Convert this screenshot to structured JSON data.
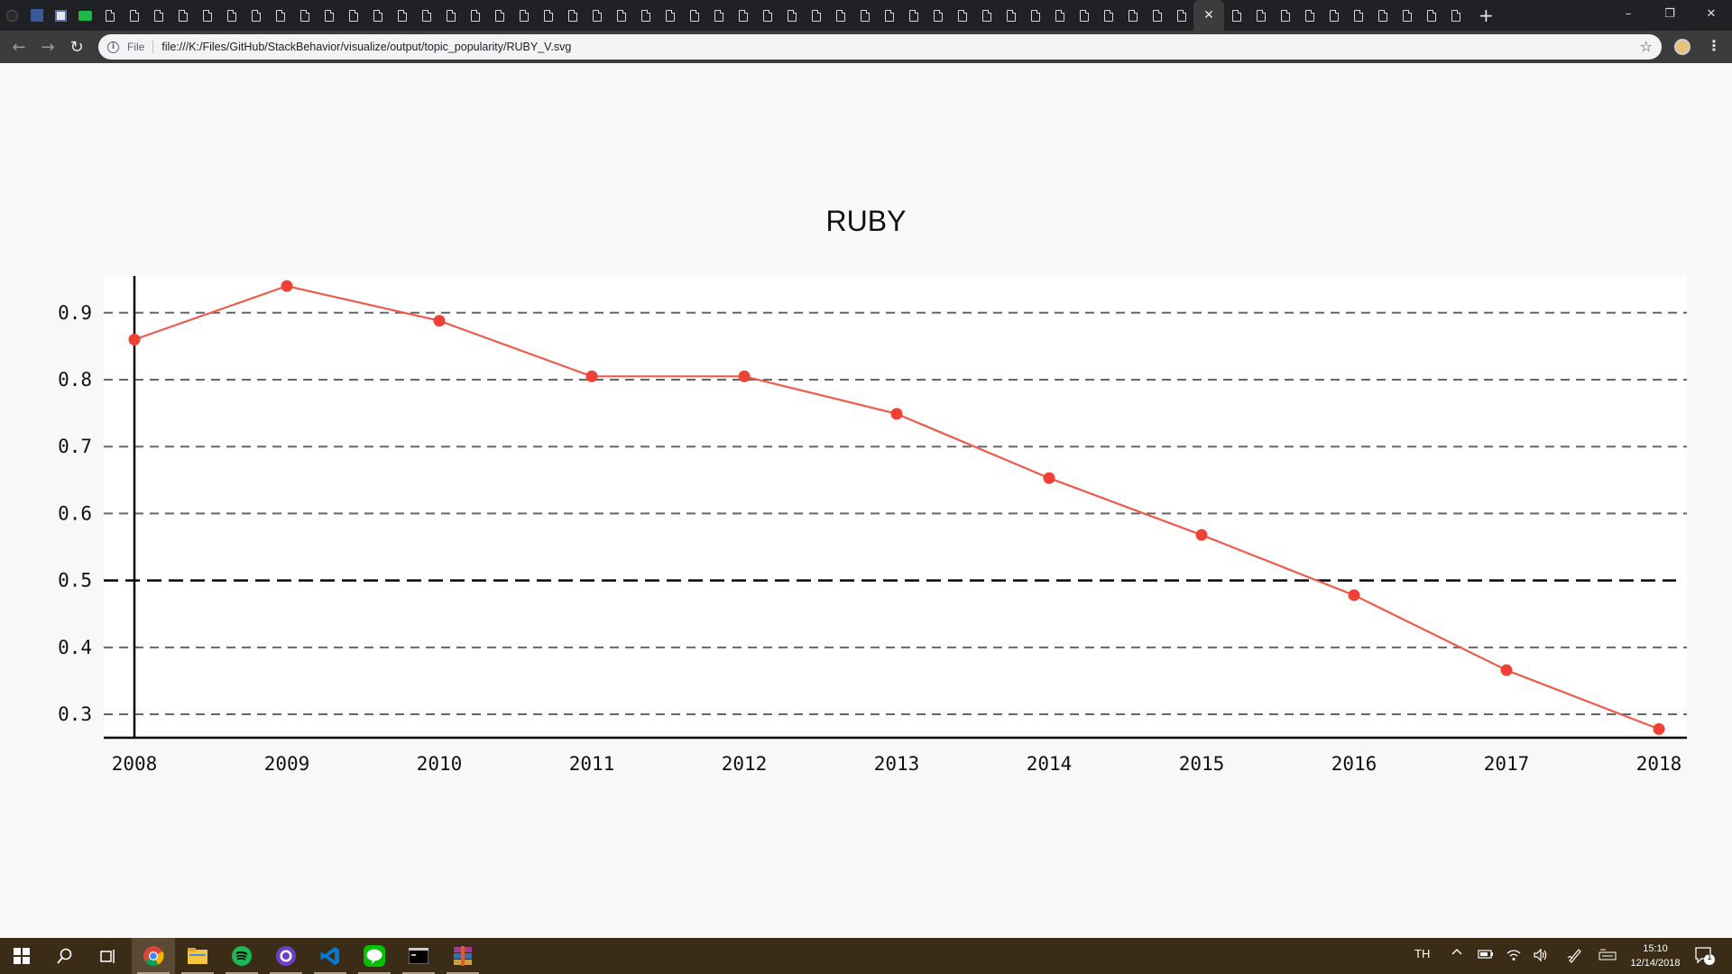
{
  "browser": {
    "tab_count": 60,
    "active_tab_index": 49,
    "close_glyph": "✕",
    "new_tab_glyph": "+",
    "window_controls": {
      "minimize": "–",
      "maximize": "❐",
      "close": "✕"
    },
    "nav": {
      "back": "←",
      "forward": "→",
      "reload": "↻"
    },
    "address": {
      "scheme_label": "File",
      "url": "file:///K:/Files/GitHub/StackBehavior/visualize/output/topic_popularity/RUBY_V.svg",
      "info_glyph": "i",
      "bookmark_glyph": "☆"
    },
    "menu_glyph": "⋮"
  },
  "chart_data": {
    "type": "line",
    "title": "RUBY",
    "xlabel": "",
    "ylabel": "",
    "x": [
      "2008",
      "2009",
      "2010",
      "2011",
      "2012",
      "2013",
      "2014",
      "2015",
      "2016",
      "2017",
      "2018"
    ],
    "series": [
      {
        "values": [
          0.86,
          0.94,
          0.888,
          0.805,
          0.805,
          0.749,
          0.653,
          0.568,
          0.478,
          0.366,
          0.278
        ]
      }
    ],
    "yticks": [
      0.9,
      0.8,
      0.7,
      0.6,
      0.5,
      0.4,
      0.3
    ],
    "ytick_labels": [
      "0.9",
      "0.8",
      "0.7",
      "0.6",
      "0.5",
      "0.4",
      "0.3"
    ],
    "ylim": [
      0.265,
      0.955
    ],
    "reference_line": 0.5,
    "grid": "horizontal dashed",
    "colors": {
      "line": "#ef5a4a",
      "marker": "#ef4136",
      "grid": "#666666",
      "axis": "#000000"
    }
  },
  "taskbar": {
    "apps": [
      "start-icon",
      "search-icon",
      "task-view-icon",
      "chrome-icon",
      "file-explorer-icon",
      "spotify-icon",
      "github-desktop-icon",
      "vscode-icon",
      "line-icon",
      "terminal-icon",
      "winrar-icon"
    ],
    "language": "TH",
    "clock": {
      "time": "15:10",
      "date": "12/14/2018"
    },
    "notification_count": "1"
  }
}
